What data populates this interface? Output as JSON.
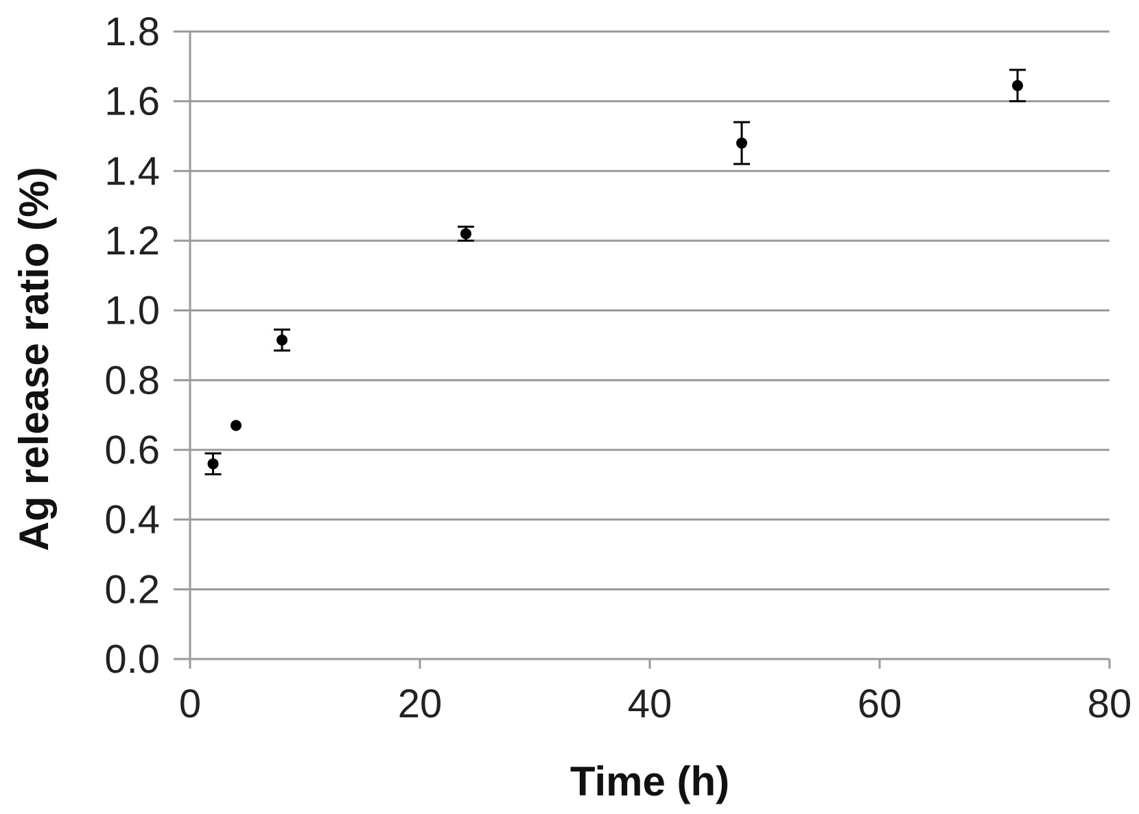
{
  "chart_data": {
    "type": "scatter",
    "title": "",
    "xlabel": "Time (h)",
    "ylabel": "Ag release ratio  (%)",
    "xlim": [
      0,
      80
    ],
    "ylim": [
      0,
      1.8
    ],
    "x_ticks": [
      "0",
      "20",
      "40",
      "60",
      "80"
    ],
    "y_ticks": [
      "0.0",
      "0.2",
      "0.4",
      "0.6",
      "0.8",
      "1.0",
      "1.2",
      "1.4",
      "1.6",
      "1.8"
    ],
    "grid": "horizontal",
    "legend": "none",
    "series": [
      {
        "points": [
          {
            "x": 2,
            "y": 0.56,
            "err": 0.03
          },
          {
            "x": 4,
            "y": 0.67,
            "err": 0.0
          },
          {
            "x": 8,
            "y": 0.915,
            "err": 0.03
          },
          {
            "x": 24,
            "y": 1.22,
            "err": 0.02
          },
          {
            "x": 48,
            "y": 1.48,
            "err": 0.06
          },
          {
            "x": 72,
            "y": 1.645,
            "err": 0.045
          }
        ],
        "marker_color": "#000000"
      }
    ]
  }
}
